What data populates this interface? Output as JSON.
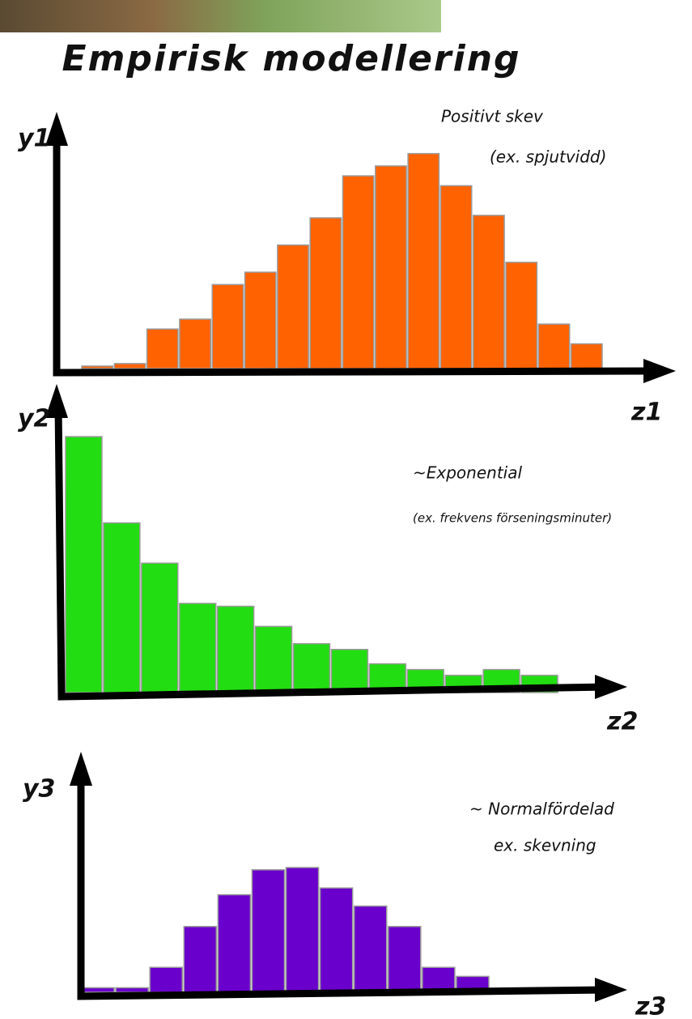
{
  "title": "Empirisk modellering",
  "chart_data": [
    {
      "type": "bar",
      "y_label": "y1",
      "x_label": "z1",
      "annotations": [
        "Positivt skev",
        "(ex. spjutvidd)"
      ],
      "categories": [
        null,
        null,
        null,
        null,
        null,
        null,
        null,
        null,
        null,
        null,
        null,
        null,
        null,
        null,
        null,
        null
      ],
      "values": [
        1,
        2,
        16,
        20,
        34,
        39,
        50,
        61,
        78,
        82,
        87,
        74,
        62,
        43,
        18,
        10
      ],
      "color": "#ff6200",
      "ylim": [
        0,
        100
      ]
    },
    {
      "type": "bar",
      "y_label": "y2",
      "x_label": "z2",
      "annotations": [
        "~Exponential",
        "(ex. frekvens förseningsminuter)"
      ],
      "categories": [
        null,
        null,
        null,
        null,
        null,
        null,
        null,
        null,
        null,
        null,
        null,
        null,
        null
      ],
      "values": [
        89,
        59,
        45,
        31,
        30,
        23,
        17,
        15,
        10,
        8,
        6,
        8,
        6
      ],
      "color": "#22dd11",
      "ylim": [
        0,
        100
      ]
    },
    {
      "type": "bar",
      "y_label": "y3",
      "x_label": "z3",
      "annotations": [
        "~ Normalfördelad",
        "ex. skevning"
      ],
      "categories": [
        null,
        null,
        null,
        null,
        null,
        null,
        null,
        null,
        null,
        null,
        null,
        null
      ],
      "values": [
        2,
        2,
        11,
        29,
        43,
        54,
        55,
        46,
        38,
        29,
        11,
        7
      ],
      "color": "#6a00cc",
      "ylim": [
        0,
        100
      ]
    }
  ]
}
